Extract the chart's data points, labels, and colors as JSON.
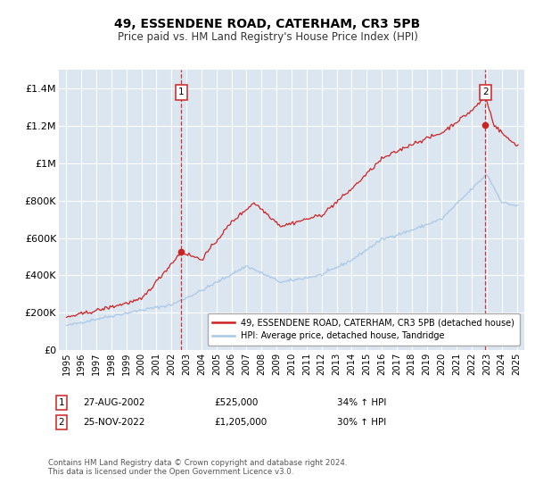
{
  "title": "49, ESSENDENE ROAD, CATERHAM, CR3 5PB",
  "subtitle": "Price paid vs. HM Land Registry's House Price Index (HPI)",
  "background_color": "#ffffff",
  "plot_bg_color": "#dce6f1",
  "grid_color": "#ffffff",
  "sale1_date_num": 2002.65,
  "sale1_price": 525000,
  "sale2_date_num": 2022.9,
  "sale2_price": 1205000,
  "legend_line1": "49, ESSENDENE ROAD, CATERHAM, CR3 5PB (detached house)",
  "legend_line2": "HPI: Average price, detached house, Tandridge",
  "annotation1_date": "27-AUG-2002",
  "annotation1_price": "£525,000",
  "annotation1_hpi": "34% ↑ HPI",
  "annotation2_date": "25-NOV-2022",
  "annotation2_price": "£1,205,000",
  "annotation2_hpi": "30% ↑ HPI",
  "footer": "Contains HM Land Registry data © Crown copyright and database right 2024.\nThis data is licensed under the Open Government Licence v3.0.",
  "ylim": [
    0,
    1500000
  ],
  "xlim": [
    1994.5,
    2025.5
  ]
}
